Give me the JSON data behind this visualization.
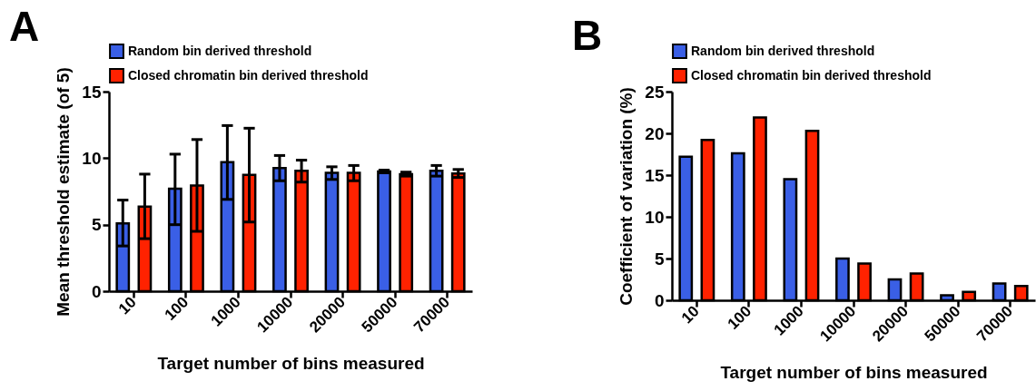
{
  "chart_data": [
    {
      "type": "bar",
      "annotations": [
        "A"
      ],
      "xlabel": "Target number of bins measured",
      "ylabel": "Mean threshold estimate (of 5)",
      "categories": [
        "10",
        "100",
        "1000",
        "10000",
        "20000",
        "50000",
        "70000"
      ],
      "ylim": [
        0,
        15
      ],
      "yticks": [
        0,
        5,
        10,
        15
      ],
      "legend": "top",
      "grid": false,
      "series": [
        {
          "name": "Random bin derived threshold",
          "color": "#3a5fe6",
          "values": [
            5.1,
            7.7,
            9.7,
            9.25,
            8.9,
            9.0,
            9.05
          ],
          "errors": [
            [
              3.4,
              6.85
            ],
            [
              5.0,
              10.3
            ],
            [
              6.9,
              12.45
            ],
            [
              8.3,
              10.2
            ],
            [
              8.4,
              9.35
            ],
            [
              8.9,
              9.1
            ],
            [
              8.65,
              9.45
            ]
          ]
        },
        {
          "name": "Closed chromatin bin derived threshold",
          "color": "#ff2200",
          "values": [
            6.35,
            7.95,
            8.75,
            9.05,
            8.9,
            8.8,
            8.85
          ],
          "errors": [
            [
              3.95,
              8.8
            ],
            [
              4.5,
              11.4
            ],
            [
              5.2,
              12.25
            ],
            [
              8.2,
              9.85
            ],
            [
              8.3,
              9.45
            ],
            [
              8.65,
              8.95
            ],
            [
              8.55,
              9.15
            ]
          ]
        }
      ]
    },
    {
      "type": "bar",
      "annotations": [
        "B"
      ],
      "xlabel": "Target number of bins measured",
      "ylabel": "Coefficient of variation (%)",
      "categories": [
        "10",
        "100",
        "1000",
        "10000",
        "20000",
        "50000",
        "70000"
      ],
      "ylim": [
        0,
        25
      ],
      "yticks": [
        0,
        5,
        10,
        15,
        20,
        25
      ],
      "legend": "top",
      "grid": false,
      "series": [
        {
          "name": "Random bin derived threshold",
          "color": "#3a5fe6",
          "values": [
            17.2,
            17.6,
            14.5,
            5.0,
            2.5,
            0.6,
            2.0
          ]
        },
        {
          "name": "Closed chromatin bin derived threshold",
          "color": "#ff2200",
          "values": [
            19.2,
            21.9,
            20.3,
            4.4,
            3.2,
            1.0,
            1.7
          ]
        }
      ]
    }
  ]
}
